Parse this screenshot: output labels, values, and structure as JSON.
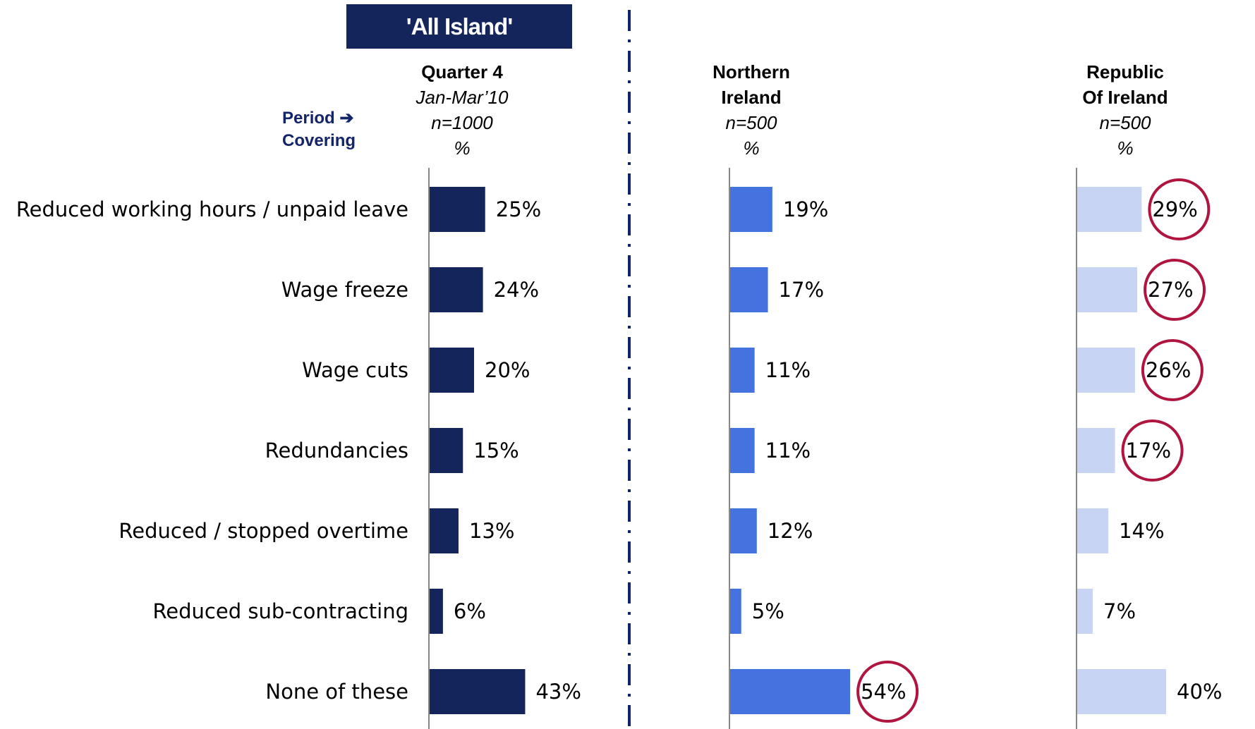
{
  "banner": "'All Island'",
  "period_label": [
    "Period ➔",
    "Covering"
  ],
  "headers": [
    {
      "bold": [
        "Quarter 4"
      ],
      "italic": [
        "Jan-Mar’10",
        "n=1000",
        "%"
      ]
    },
    {
      "bold": [
        "Northern",
        "Ireland"
      ],
      "italic": [
        "n=500",
        "%"
      ]
    },
    {
      "bold": [
        "Republic",
        "Of Ireland"
      ],
      "italic": [
        "n=500",
        "%"
      ]
    }
  ],
  "colors": {
    "all_island": "#13255a",
    "northern_ireland": "#4472df",
    "republic_of_ireland": "#c7d4f3",
    "highlight": "#b0153f",
    "divider": "#13256a"
  },
  "chart_data": {
    "type": "bar",
    "orientation": "horizontal",
    "categories": [
      "Reduced working hours / unpaid leave",
      "Wage freeze",
      "Wage cuts",
      "Redundancies",
      "Reduced / stopped overtime",
      "Reduced sub-contracting",
      "None of these"
    ],
    "series": [
      {
        "values": [
          25,
          24,
          20,
          15,
          13,
          6,
          43
        ],
        "labels": [
          "25%",
          "24%",
          "20%",
          "15%",
          "13%",
          "6%",
          "43%"
        ],
        "highlighted": [
          false,
          false,
          false,
          false,
          false,
          false,
          false
        ]
      },
      {
        "values": [
          19,
          17,
          11,
          11,
          12,
          5,
          54
        ],
        "labels": [
          "19%",
          "17%",
          "11%",
          "11%",
          "12%",
          "5%",
          "54%"
        ],
        "highlighted": [
          false,
          false,
          false,
          false,
          false,
          false,
          true
        ]
      },
      {
        "values": [
          29,
          27,
          26,
          17,
          14,
          7,
          40
        ],
        "labels": [
          "29%",
          "27%",
          "26%",
          "17%",
          "14%",
          "7%",
          "40%"
        ],
        "highlighted": [
          true,
          true,
          true,
          true,
          false,
          false,
          false
        ]
      }
    ],
    "grid": false,
    "legend": "none"
  }
}
